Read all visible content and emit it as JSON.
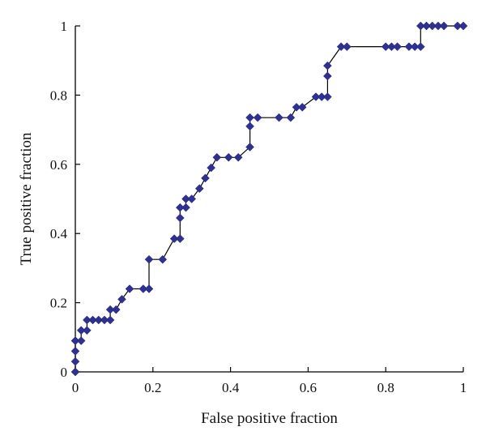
{
  "chart_data": {
    "type": "line",
    "xlabel": "False positive fraction",
    "ylabel": "True positive fraction",
    "xlim": [
      0,
      1
    ],
    "ylim": [
      0,
      1
    ],
    "xticks": [
      0,
      0.2,
      0.4,
      0.6,
      0.8,
      1
    ],
    "yticks": [
      0,
      0.2,
      0.4,
      0.6,
      0.8,
      1
    ],
    "xtick_labels": [
      "0",
      "0.2",
      "0.4",
      "0.6",
      "0.8",
      "1"
    ],
    "ytick_labels": [
      "0",
      "0.2",
      "0.4",
      "0.6",
      "0.8",
      "1"
    ],
    "grid": false,
    "line_color": "#000000",
    "marker_color": "#2E3192",
    "marker": "diamond",
    "series": [
      {
        "x": [
          0,
          0,
          0,
          0,
          0,
          0.015,
          0.015,
          0.03,
          0.03,
          0.045,
          0.06,
          0.075,
          0.09,
          0.09,
          0.105,
          0.12,
          0.14,
          0.175,
          0.19,
          0.19,
          0.225,
          0.255,
          0.27,
          0.27,
          0.27,
          0.285,
          0.285,
          0.3,
          0.32,
          0.335,
          0.35,
          0.365,
          0.395,
          0.42,
          0.45,
          0.45,
          0.45,
          0.47,
          0.525,
          0.555,
          0.57,
          0.585,
          0.62,
          0.635,
          0.65,
          0.65,
          0.65,
          0.685,
          0.7,
          0.8,
          0.815,
          0.83,
          0.86,
          0.875,
          0.89,
          0.89,
          0.905,
          0.92,
          0.935,
          0.95,
          0.985,
          1
        ],
        "y": [
          0,
          0.03,
          0.06,
          0.09,
          0.09,
          0.09,
          0.12,
          0.12,
          0.15,
          0.15,
          0.15,
          0.15,
          0.15,
          0.18,
          0.18,
          0.21,
          0.24,
          0.24,
          0.24,
          0.325,
          0.325,
          0.385,
          0.385,
          0.445,
          0.475,
          0.475,
          0.5,
          0.5,
          0.53,
          0.56,
          0.59,
          0.62,
          0.62,
          0.62,
          0.65,
          0.71,
          0.735,
          0.735,
          0.735,
          0.735,
          0.765,
          0.765,
          0.795,
          0.795,
          0.795,
          0.855,
          0.885,
          0.94,
          0.94,
          0.94,
          0.94,
          0.94,
          0.94,
          0.94,
          0.94,
          1,
          1,
          1,
          1,
          1,
          1,
          1
        ]
      }
    ]
  }
}
